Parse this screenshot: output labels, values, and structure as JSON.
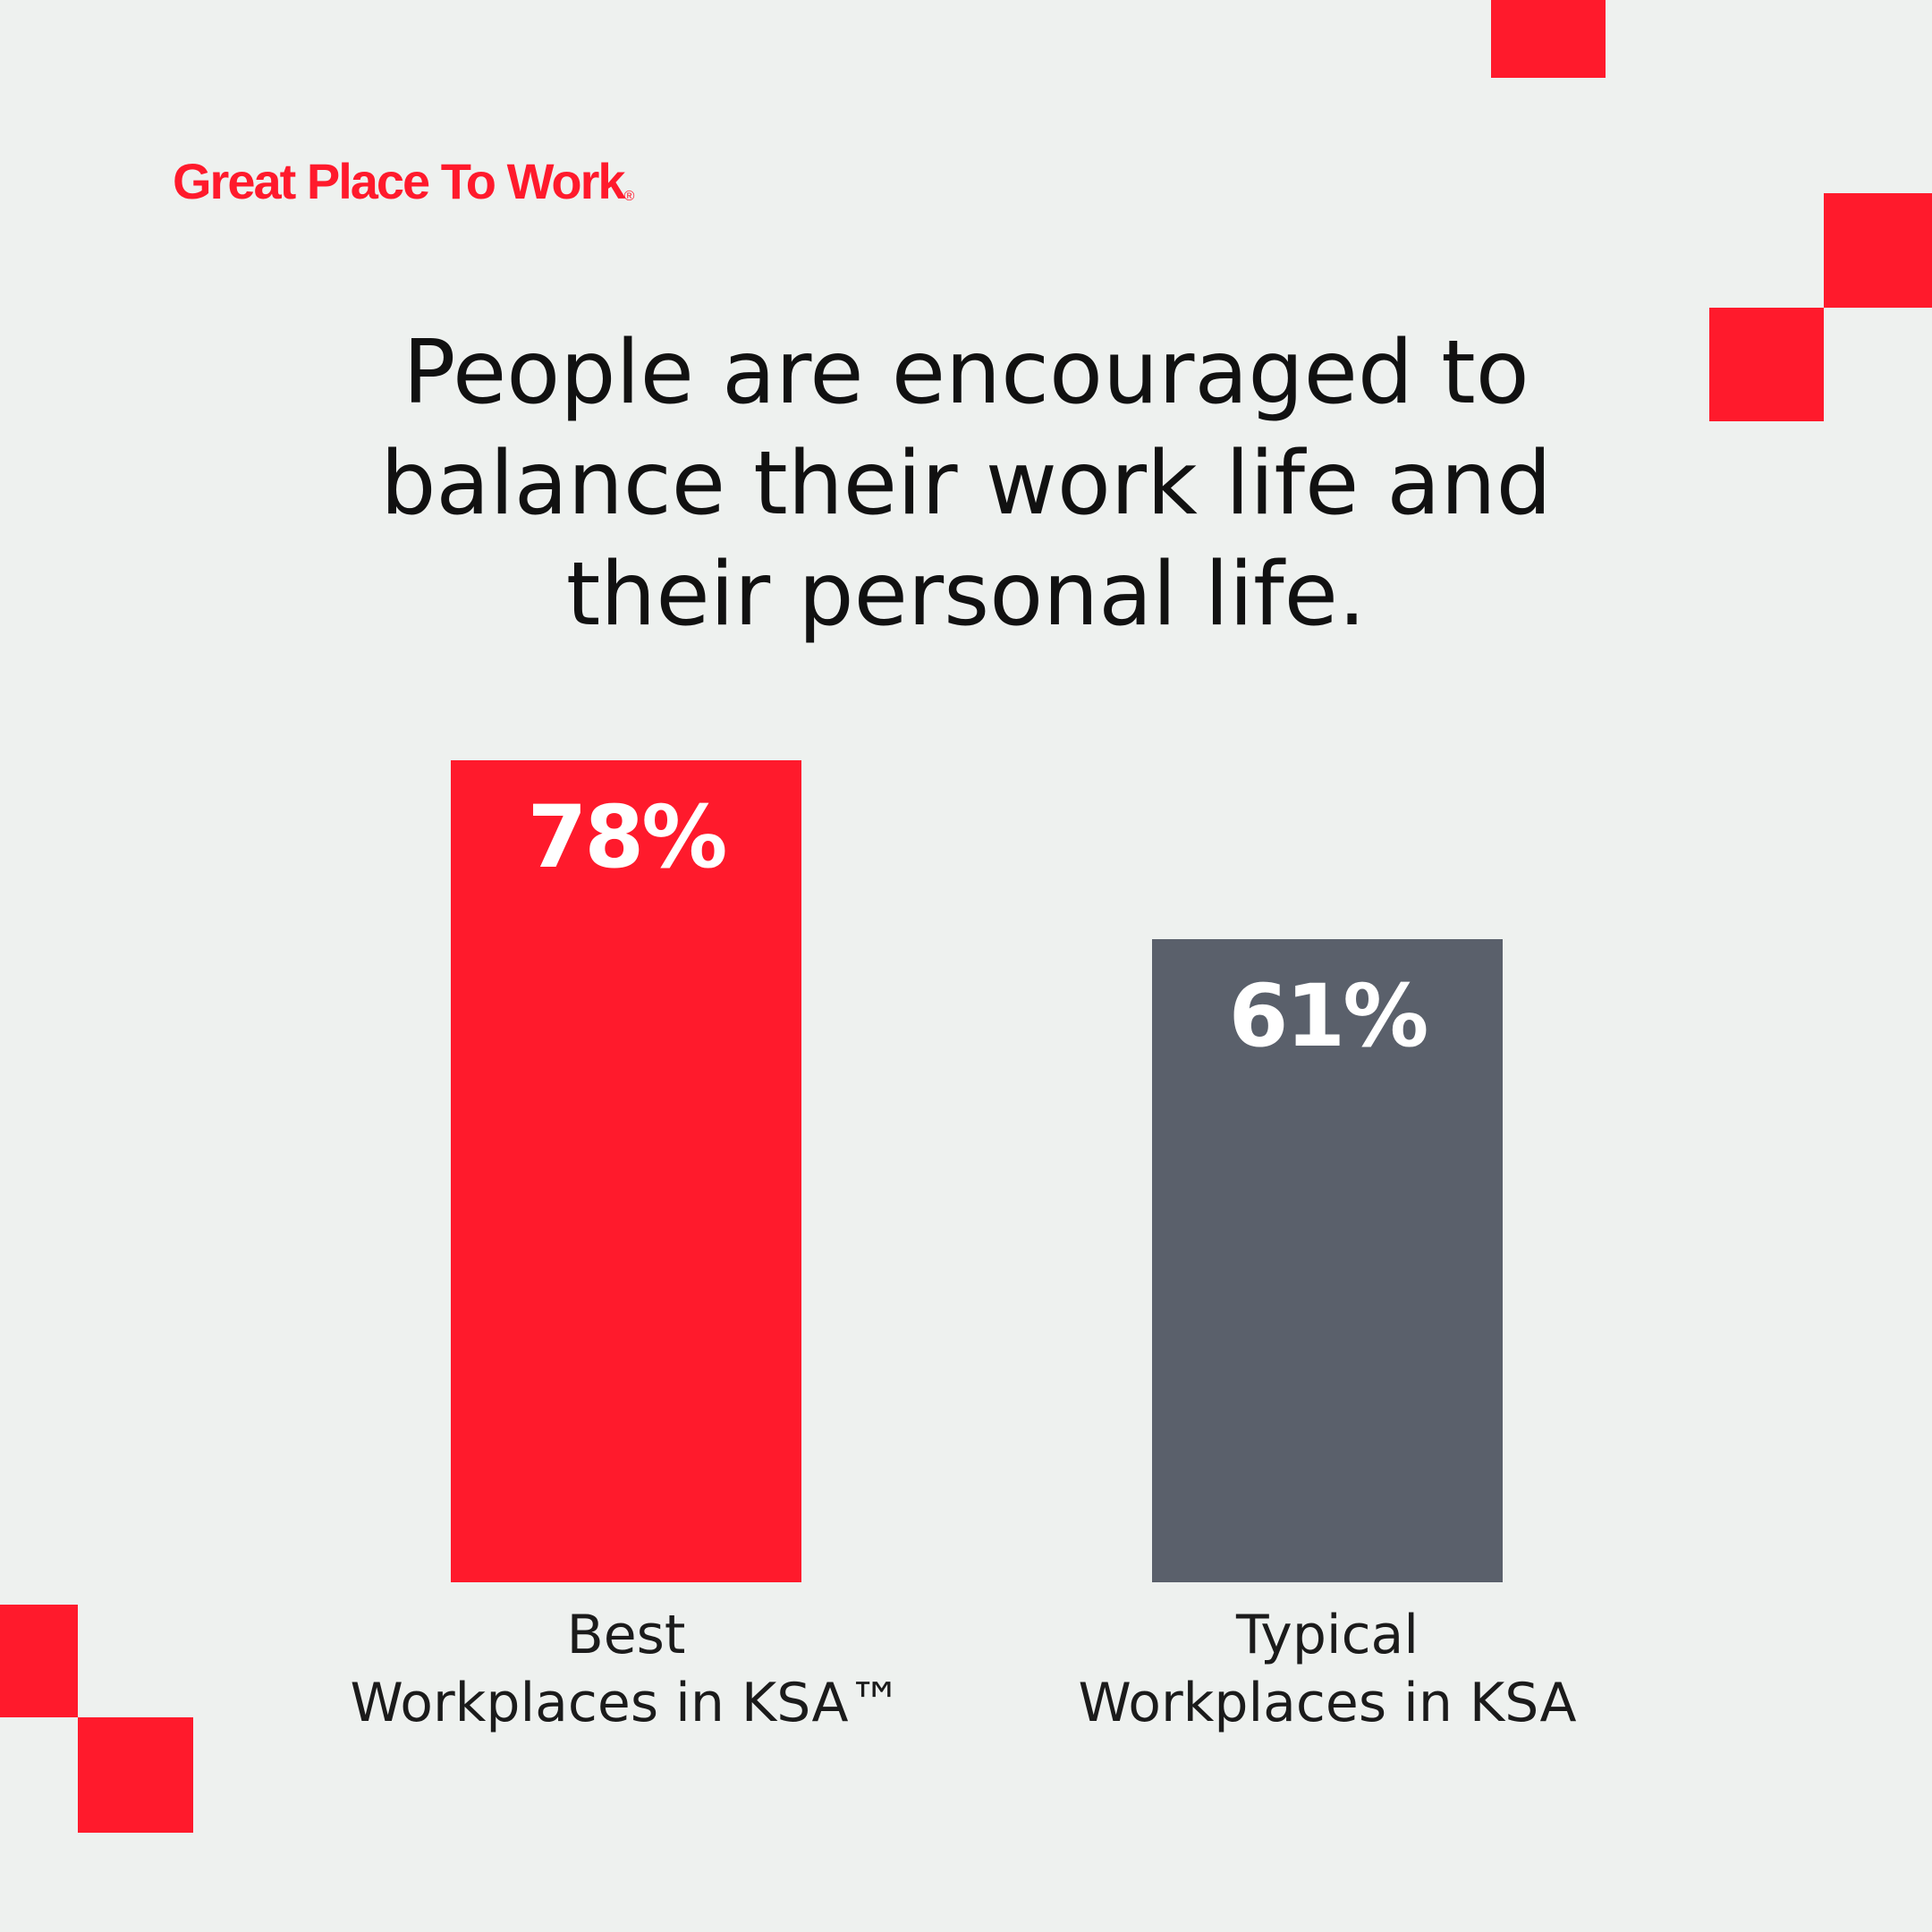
{
  "logo": {
    "text": "Great Place To Work",
    "mark": "®"
  },
  "chart_data": {
    "type": "bar",
    "title": "People are encouraged to balance their work life and their personal life.",
    "title_lines": [
      "People are encouraged to",
      "balance their work life and",
      "their personal life."
    ],
    "categories": [
      {
        "line1": "Best",
        "line2": "Workplaces in KSA™"
      },
      {
        "line1": "Typical",
        "line2": "Workplaces in KSA"
      }
    ],
    "values": [
      78,
      61
    ],
    "value_labels": [
      "78%",
      "61%"
    ],
    "colors": [
      "#ff1a2c",
      "#5a606b"
    ],
    "ylim": [
      0,
      100
    ],
    "xlabel": "",
    "ylabel": ""
  }
}
